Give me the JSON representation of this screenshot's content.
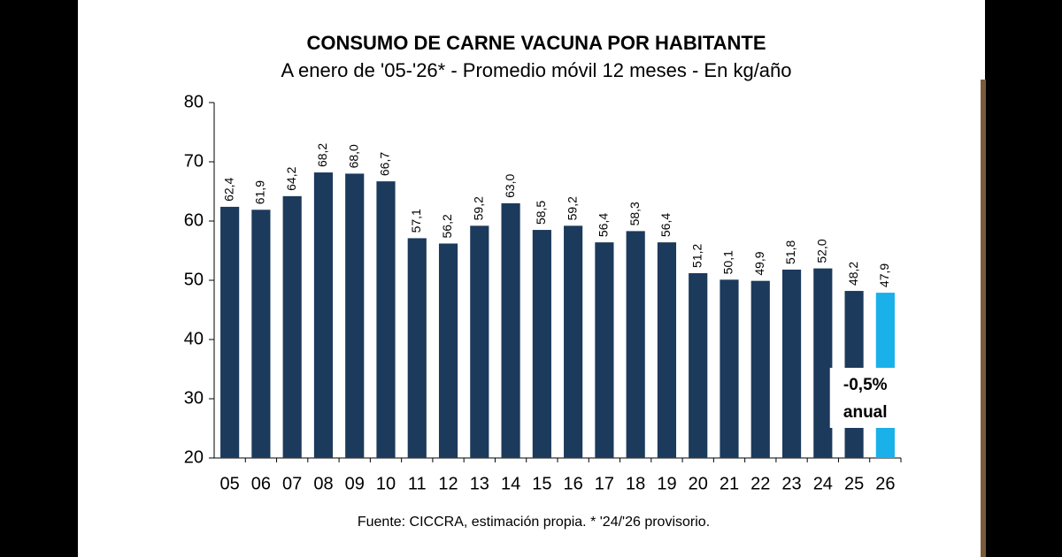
{
  "chart_data": {
    "type": "bar",
    "title": "CONSUMO DE CARNE VACUNA POR HABITANTE",
    "subtitle": "A enero de '05-'26* - Promedio móvil 12 meses -  En kg/año",
    "source": "Fuente: CICCRA, estimación propia. * '24/'26 provisorio.",
    "annotation": [
      "-0,5%",
      "anual"
    ],
    "categories": [
      "05",
      "06",
      "07",
      "08",
      "09",
      "10",
      "11",
      "12",
      "13",
      "14",
      "15",
      "16",
      "17",
      "18",
      "19",
      "20",
      "21",
      "22",
      "23",
      "24",
      "25",
      "26"
    ],
    "values": [
      62.4,
      61.9,
      64.2,
      68.2,
      68.0,
      66.7,
      57.1,
      56.2,
      59.2,
      63.0,
      58.5,
      59.2,
      56.4,
      58.3,
      56.4,
      51.2,
      50.1,
      49.9,
      51.8,
      52.0,
      48.2,
      47.9
    ],
    "value_labels": [
      "62,4",
      "61,9",
      "64,2",
      "68,2",
      "68,0",
      "66,7",
      "57,1",
      "56,2",
      "59,2",
      "63,0",
      "58,5",
      "59,2",
      "56,4",
      "58,3",
      "56,4",
      "51,2",
      "50,1",
      "49,9",
      "51,8",
      "52,0",
      "48,2",
      "47,9"
    ],
    "colors": [
      "#1b3a5c",
      "#1b3a5c",
      "#1b3a5c",
      "#1b3a5c",
      "#1b3a5c",
      "#1b3a5c",
      "#1b3a5c",
      "#1b3a5c",
      "#1b3a5c",
      "#1b3a5c",
      "#1b3a5c",
      "#1b3a5c",
      "#1b3a5c",
      "#1b3a5c",
      "#1b3a5c",
      "#1b3a5c",
      "#1b3a5c",
      "#1b3a5c",
      "#1b3a5c",
      "#1b3a5c",
      "#1b3a5c",
      "#1ab0ea"
    ],
    "ylim": [
      20,
      80
    ],
    "yticks": [
      20,
      30,
      40,
      50,
      60,
      70,
      80
    ],
    "grid": false
  }
}
